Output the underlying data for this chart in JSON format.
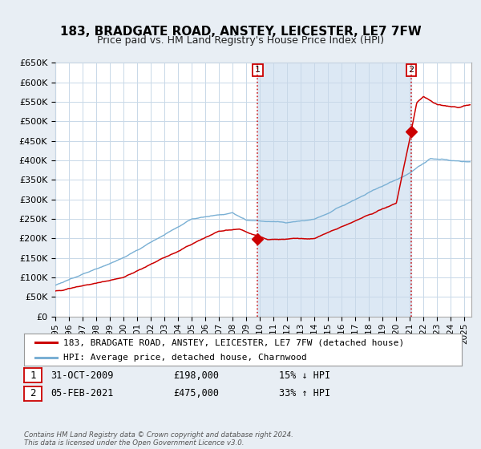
{
  "title": "183, BRADGATE ROAD, ANSTEY, LEICESTER, LE7 7FW",
  "subtitle": "Price paid vs. HM Land Registry's House Price Index (HPI)",
  "ylim": [
    0,
    650000
  ],
  "xlim_start": 1995.0,
  "xlim_end": 2025.5,
  "yticks": [
    0,
    50000,
    100000,
    150000,
    200000,
    250000,
    300000,
    350000,
    400000,
    450000,
    500000,
    550000,
    600000,
    650000
  ],
  "ytick_labels": [
    "£0",
    "£50K",
    "£100K",
    "£150K",
    "£200K",
    "£250K",
    "£300K",
    "£350K",
    "£400K",
    "£450K",
    "£500K",
    "£550K",
    "£600K",
    "£650K"
  ],
  "xticks": [
    1995,
    1996,
    1997,
    1998,
    1999,
    2000,
    2001,
    2002,
    2003,
    2004,
    2005,
    2006,
    2007,
    2008,
    2009,
    2010,
    2011,
    2012,
    2013,
    2014,
    2015,
    2016,
    2017,
    2018,
    2019,
    2020,
    2021,
    2022,
    2023,
    2024,
    2025
  ],
  "legend_label_red": "183, BRADGATE ROAD, ANSTEY, LEICESTER, LE7 7FW (detached house)",
  "legend_label_blue": "HPI: Average price, detached house, Charnwood",
  "marker1_x": 2009.83,
  "marker1_y": 198000,
  "marker2_x": 2021.09,
  "marker2_y": 475000,
  "vline1_x": 2009.83,
  "vline2_x": 2021.09,
  "annotation1_label": "1",
  "annotation1_date": "31-OCT-2009",
  "annotation1_price": "£198,000",
  "annotation1_hpi": "15% ↓ HPI",
  "annotation2_label": "2",
  "annotation2_date": "05-FEB-2021",
  "annotation2_price": "£475,000",
  "annotation2_hpi": "33% ↑ HPI",
  "footer": "Contains HM Land Registry data © Crown copyright and database right 2024.\nThis data is licensed under the Open Government Licence v3.0.",
  "bg_color": "#e8eef4",
  "plot_bg_color": "#ffffff",
  "shaded_bg_color": "#dce8f4",
  "red_color": "#cc0000",
  "blue_color": "#7ab0d4",
  "grid_color": "#c8d8e8",
  "title_fontsize": 11,
  "subtitle_fontsize": 9,
  "tick_fontsize": 8,
  "legend_fontsize": 8
}
